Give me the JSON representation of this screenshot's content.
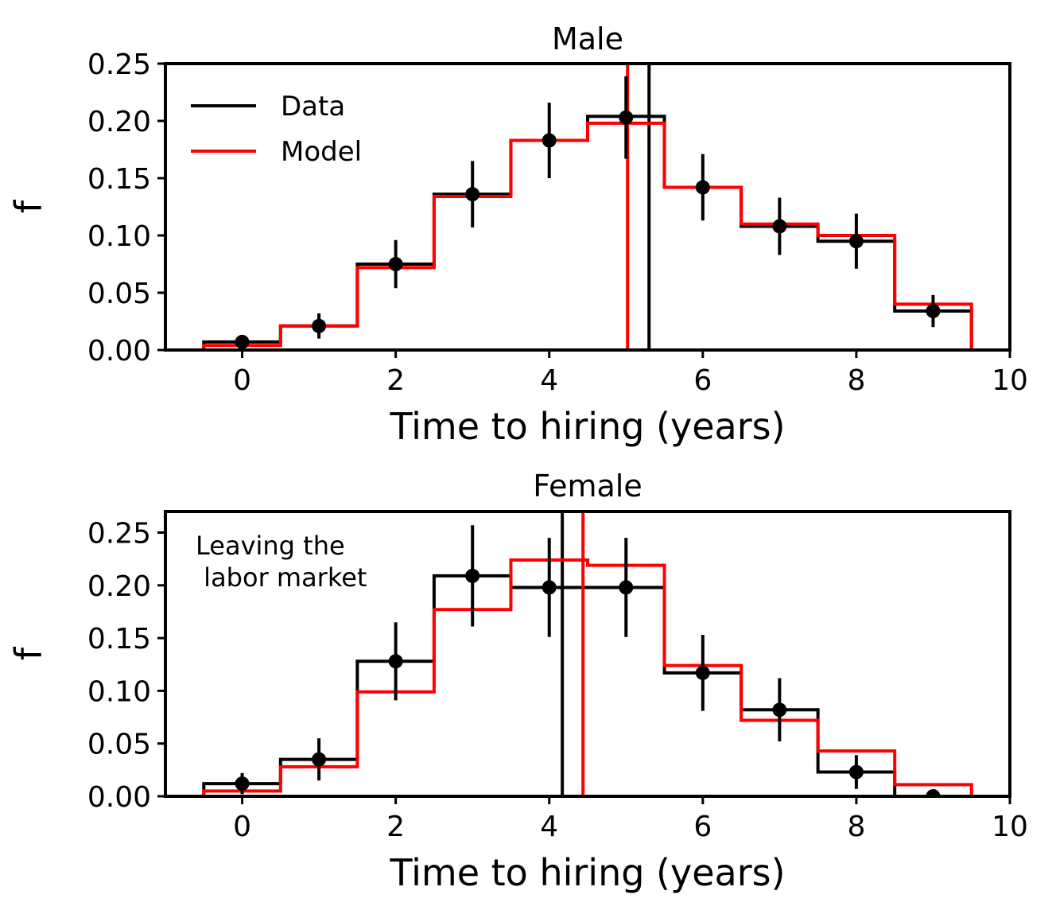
{
  "colors": {
    "data": "#000000",
    "model": "#ff0000",
    "background": "#ffffff"
  },
  "chart_data": [
    {
      "type": "step-histogram",
      "title": "Male",
      "xlabel": "Time to hiring (years)",
      "ylabel": "f",
      "xlim": [
        -1,
        10
      ],
      "ylim": [
        0,
        0.25
      ],
      "xticks": [
        0,
        2,
        4,
        6,
        8,
        10
      ],
      "xtick_labels": [
        "0",
        "2",
        "4",
        "6",
        "8",
        "10"
      ],
      "yticks": [
        0,
        0.05,
        0.1,
        0.15,
        0.2,
        0.25
      ],
      "ytick_labels": [
        "0.00",
        "0.05",
        "0.10",
        "0.15",
        "0.20",
        "0.25"
      ],
      "grid": false,
      "legend": {
        "placement": "top-left",
        "entries": [
          "Data",
          "Model"
        ]
      },
      "annotation": "",
      "bin_edges": [
        -0.5,
        0.5,
        1.5,
        2.5,
        3.5,
        4.5,
        5.5,
        6.5,
        7.5,
        8.5,
        9.5
      ],
      "series": [
        {
          "name": "Data",
          "kind": "step",
          "values": [
            0.007,
            0.021,
            0.075,
            0.136,
            0.183,
            0.204,
            0.142,
            0.108,
            0.095,
            0.034
          ],
          "mean_line": 5.3
        },
        {
          "name": "Model",
          "kind": "step",
          "values": [
            0.004,
            0.021,
            0.072,
            0.134,
            0.183,
            0.198,
            0.142,
            0.11,
            0.1,
            0.04
          ],
          "mean_line": 5.02
        }
      ],
      "points": {
        "x": [
          0,
          1,
          2,
          3,
          4,
          5,
          6,
          7,
          8,
          9
        ],
        "y": [
          0.007,
          0.021,
          0.075,
          0.136,
          0.183,
          0.203,
          0.142,
          0.108,
          0.095,
          0.034
        ],
        "err": [
          0.004,
          0.011,
          0.021,
          0.029,
          0.033,
          0.036,
          0.029,
          0.025,
          0.024,
          0.014
        ]
      }
    },
    {
      "type": "step-histogram",
      "title": "Female",
      "xlabel": "Time to hiring (years)",
      "ylabel": "f",
      "xlim": [
        -1,
        10
      ],
      "ylim": [
        0,
        0.27
      ],
      "xticks": [
        0,
        2,
        4,
        6,
        8,
        10
      ],
      "xtick_labels": [
        "0",
        "2",
        "4",
        "6",
        "8",
        "10"
      ],
      "yticks": [
        0,
        0.05,
        0.1,
        0.15,
        0.2,
        0.25
      ],
      "ytick_labels": [
        "0.00",
        "0.05",
        "0.10",
        "0.15",
        "0.20",
        "0.25"
      ],
      "grid": false,
      "legend": null,
      "annotation": "Leaving the\n labor market",
      "annotation_lines": [
        "Leaving the",
        " labor market"
      ],
      "bin_edges": [
        -0.5,
        0.5,
        1.5,
        2.5,
        3.5,
        4.5,
        5.5,
        6.5,
        7.5,
        8.5,
        9.5
      ],
      "series": [
        {
          "name": "Data",
          "kind": "step",
          "values": [
            0.012,
            0.035,
            0.128,
            0.209,
            0.198,
            0.198,
            0.117,
            0.082,
            0.023,
            0.0
          ],
          "mean_line": 4.17
        },
        {
          "name": "Model",
          "kind": "step",
          "values": [
            0.005,
            0.028,
            0.099,
            0.177,
            0.224,
            0.219,
            0.124,
            0.072,
            0.043,
            0.011
          ],
          "mean_line": 4.44
        }
      ],
      "points": {
        "x": [
          0,
          1,
          2,
          3,
          4,
          5,
          6,
          7,
          8,
          9
        ],
        "y": [
          0.012,
          0.035,
          0.128,
          0.209,
          0.198,
          0.198,
          0.117,
          0.082,
          0.023,
          0.0
        ],
        "err": [
          0.01,
          0.02,
          0.037,
          0.048,
          0.047,
          0.047,
          0.036,
          0.03,
          0.016,
          0.0
        ]
      }
    }
  ]
}
